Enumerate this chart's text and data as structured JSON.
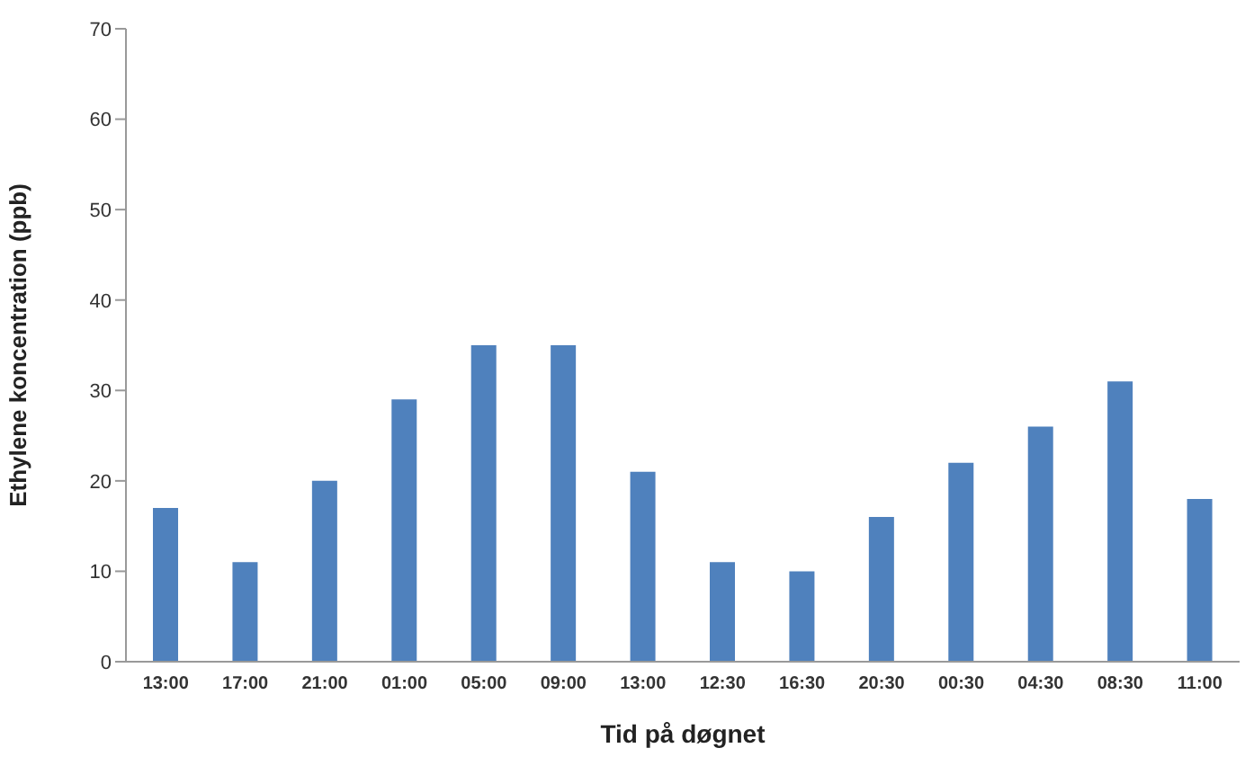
{
  "chart_data": {
    "type": "bar",
    "xlabel": "Tid på døgnet",
    "ylabel": "Ethylene koncentration (ppb)",
    "categories": [
      "13:00",
      "17:00",
      "21:00",
      "01:00",
      "05:00",
      "09:00",
      "13:00",
      "12:30",
      "16:30",
      "20:30",
      "00:30",
      "04:30",
      "08:30",
      "11:00"
    ],
    "values": [
      17,
      11,
      20,
      29,
      35,
      35,
      21,
      11,
      10,
      16,
      22,
      26,
      31,
      18
    ],
    "color": "#4f81bd",
    "ylim": [
      0,
      70
    ],
    "yticks": [
      0,
      10,
      20,
      30,
      40,
      50,
      60,
      70
    ],
    "grid": false,
    "legend": false
  }
}
